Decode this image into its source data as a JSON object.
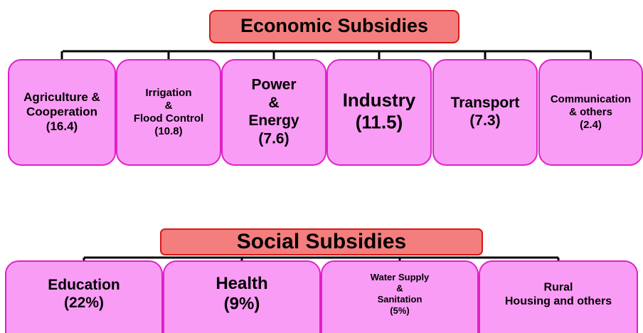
{
  "economic": {
    "title": "Economic Subsidies",
    "nodes": [
      {
        "lines": [
          "Agriculture &",
          "Cooperation",
          "(16.4)"
        ]
      },
      {
        "lines": [
          "Irrigation",
          "&",
          "Flood Control",
          "(10.8)"
        ]
      },
      {
        "lines": [
          "Power",
          "&",
          "Energy",
          "(7.6)"
        ]
      },
      {
        "lines": [
          "Industry",
          "(11.5)"
        ]
      },
      {
        "lines": [
          "Transport",
          "(7.3)"
        ]
      },
      {
        "lines": [
          "Communication",
          "& others",
          "(2.4)"
        ]
      }
    ]
  },
  "social": {
    "title": "Social Subsidies",
    "nodes": [
      {
        "lines": [
          "Education",
          "(22%)"
        ]
      },
      {
        "lines": [
          "Health",
          "(9%)"
        ]
      },
      {
        "lines": [
          "Water Supply",
          "&",
          "Sanitation",
          "(5%)"
        ]
      },
      {
        "lines": [
          "Rural",
          "Housing and others"
        ]
      }
    ]
  }
}
